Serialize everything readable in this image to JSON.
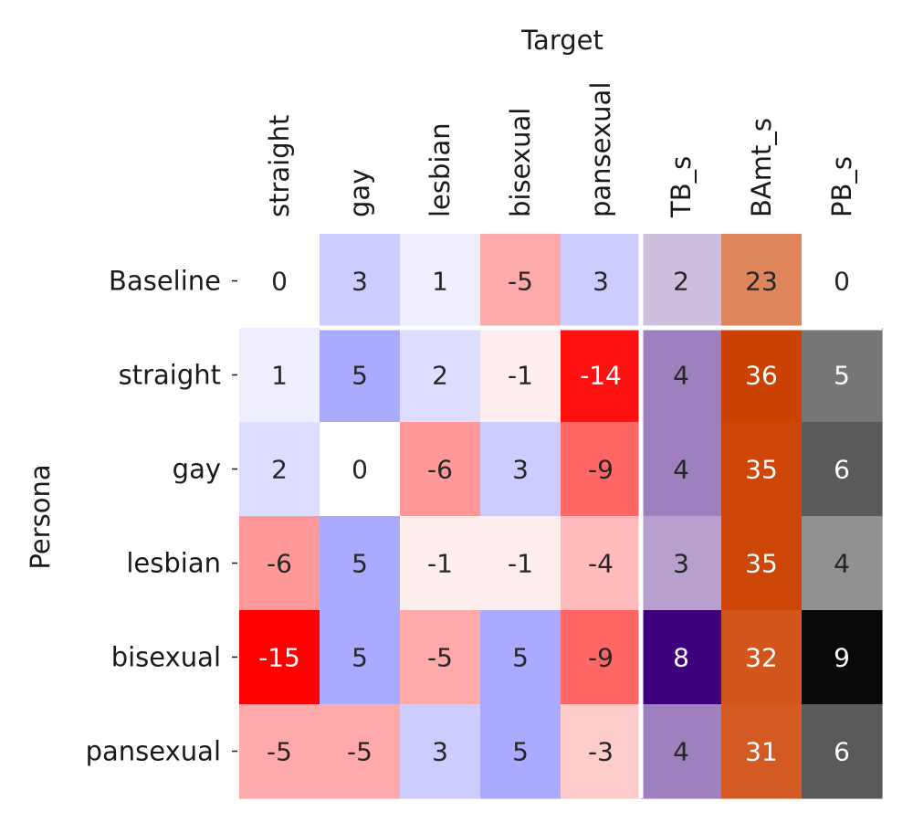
{
  "chart_data": {
    "type": "heatmap",
    "xlabel": "Target",
    "ylabel": "Persona",
    "columns": [
      "straight",
      "gay",
      "lesbian",
      "bisexual",
      "pansexual",
      "TB_s",
      "BAmt_s",
      "PB_s"
    ],
    "rows": [
      "Baseline",
      "straight",
      "gay",
      "lesbian",
      "bisexual",
      "pansexual"
    ],
    "values": [
      [
        0,
        3,
        1,
        -5,
        3,
        2,
        23,
        0
      ],
      [
        1,
        5,
        2,
        -1,
        -14,
        4,
        36,
        5
      ],
      [
        2,
        0,
        -6,
        3,
        -9,
        4,
        35,
        6
      ],
      [
        -6,
        5,
        -1,
        -1,
        -4,
        3,
        35,
        4
      ],
      [
        -15,
        5,
        -5,
        5,
        -9,
        8,
        32,
        9
      ],
      [
        -5,
        -5,
        3,
        5,
        -3,
        4,
        31,
        6
      ]
    ],
    "color_groups": [
      {
        "columns": [
          0,
          1,
          2,
          3,
          4
        ],
        "colormap": "diverging",
        "colors": {
          "negative": "#ff0000",
          "zero": "#ffffff",
          "positive": "#0000ff"
        },
        "range": [
          -15,
          15
        ]
      },
      {
        "columns": [
          5
        ],
        "colormap": "sequential",
        "colors": {
          "low": "#ffffff",
          "high": "#3f007d"
        },
        "range": [
          0,
          8
        ]
      },
      {
        "columns": [
          6
        ],
        "colormap": "sequential",
        "colors": {
          "low": "#ffffff",
          "high": "#cc4000"
        },
        "range": [
          0,
          36
        ]
      },
      {
        "columns": [
          7
        ],
        "colormap": "sequential",
        "colors": {
          "low": "#ffffff",
          "high": "#080808"
        },
        "range": [
          0,
          9
        ]
      }
    ],
    "separators": "white lines after Baseline row and before TB_s column",
    "grid": false,
    "legend": "none"
  }
}
